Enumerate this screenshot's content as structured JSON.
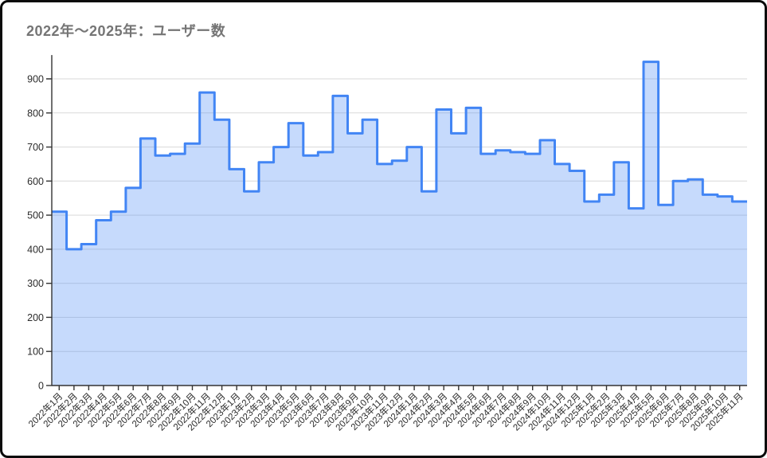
{
  "page": {
    "title": "2022年～2025年：ユーザー数"
  },
  "chart_data": {
    "type": "area",
    "stepped": true,
    "title": "2022年～2025年：ユーザー数",
    "xlabel": "",
    "ylabel": "",
    "legend": "none",
    "grid": true,
    "ylim": [
      0,
      950
    ],
    "yticks": [
      0,
      100,
      200,
      300,
      400,
      500,
      600,
      700,
      800,
      900
    ],
    "categories": [
      "2022年1月",
      "2022年2月",
      "2022年3月",
      "2022年4月",
      "2022年5月",
      "2022年6月",
      "2022年7月",
      "2022年8月",
      "2022年9月",
      "2022年10月",
      "2022年11月",
      "2022年12月",
      "2023年1月",
      "2023年2月",
      "2023年3月",
      "2023年4月",
      "2023年5月",
      "2023年6月",
      "2023年7月",
      "2023年8月",
      "2023年9月",
      "2023年10月",
      "2023年11月",
      "2023年12月",
      "2024年1月",
      "2024年2月",
      "2024年3月",
      "2024年4月",
      "2024年5月",
      "2024年6月",
      "2024年7月",
      "2024年8月",
      "2024年9月",
      "2024年10月",
      "2024年11月",
      "2024年12月",
      "2025年1月",
      "2025年2月",
      "2025年3月",
      "2025年4月",
      "2025年5月",
      "2025年6月",
      "2025年7月",
      "2025年8月",
      "2025年9月",
      "2025年10月",
      "2025年11月"
    ],
    "values": [
      510,
      400,
      415,
      485,
      510,
      580,
      725,
      675,
      680,
      710,
      860,
      780,
      635,
      570,
      655,
      700,
      770,
      675,
      685,
      850,
      740,
      780,
      650,
      660,
      700,
      570,
      810,
      740,
      815,
      680,
      690,
      685,
      680,
      720,
      650,
      630,
      540,
      560,
      655,
      520,
      950,
      530,
      600,
      605,
      560,
      555,
      540
    ],
    "series_color": "#4285F4",
    "fill_opacity": 0.3,
    "grid_color": "#D9D9D9",
    "axis_color": "#333333",
    "label_color": "#2B2B2B",
    "title_color": "#757575",
    "frame_border_color": "#0B0B0B"
  }
}
